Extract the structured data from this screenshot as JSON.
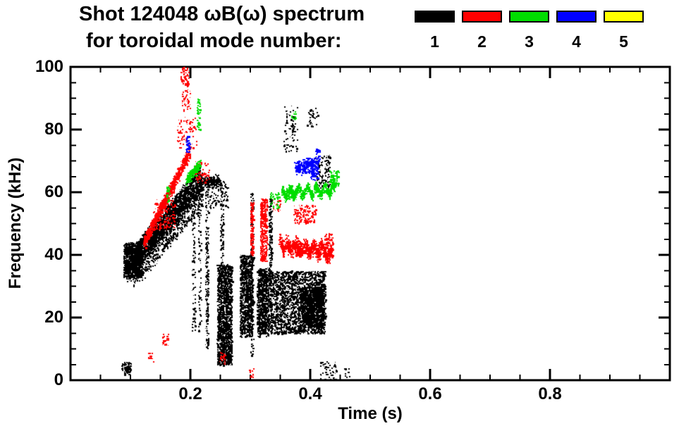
{
  "title": "Shot 124048 ωB(ω) spectrum",
  "subtitle": "for toroidal mode number:",
  "legend": {
    "modes": [
      {
        "label": "1",
        "color": "#000000"
      },
      {
        "label": "2",
        "color": "#ff0000"
      },
      {
        "label": "3",
        "color": "#00dd00"
      },
      {
        "label": "4",
        "color": "#0000ff"
      },
      {
        "label": "5",
        "color": "#ffff00"
      }
    ]
  },
  "axes": {
    "x": {
      "minor_step": 0.05
    },
    "y": {
      "minor_step": 5
    }
  },
  "chart_data": {
    "type": "scatter",
    "title": "Shot 124048 ωB(ω) spectrum",
    "subtitle": "for toroidal mode number: 1-5",
    "xlabel": "Time (s)",
    "ylabel": "Frequency (kHz)",
    "xlim": [
      0.0,
      1.0
    ],
    "ylim": [
      0,
      100
    ],
    "x_major_ticks": [
      0.2,
      0.4,
      0.6,
      0.8
    ],
    "y_major_ticks": [
      0,
      20,
      40,
      60,
      80,
      100
    ],
    "grid": false,
    "legend_position": "top-right",
    "series": [
      {
        "name": "toroidal mode n=1",
        "color": "#000000",
        "features": [
          {
            "kind": "chirp",
            "t": [
              0.093,
              0.218
            ],
            "f": [
              35,
              63
            ],
            "w": 7,
            "n": 2200
          },
          {
            "kind": "chirp",
            "t": [
              0.1,
              0.215
            ],
            "f": [
              40,
              67
            ],
            "w": 3,
            "n": 650
          },
          {
            "kind": "chirp",
            "t": [
              0.105,
              0.22
            ],
            "f": [
              31,
              57
            ],
            "w": 3,
            "n": 320
          },
          {
            "kind": "blob",
            "t": [
              0.088,
              0.118
            ],
            "f": [
              33,
              44
            ],
            "n": 650
          },
          {
            "kind": "blob",
            "t": [
              0.085,
              0.1
            ],
            "f": [
              2,
              6
            ],
            "n": 80
          },
          {
            "kind": "chirp",
            "t": [
              0.215,
              0.248
            ],
            "f": [
              63,
              64
            ],
            "w": 3,
            "n": 240
          },
          {
            "kind": "vline",
            "t": 0.205,
            "f": [
              15,
              58
            ],
            "n": 80
          },
          {
            "kind": "vline",
            "t": 0.215,
            "f": [
              15,
              60
            ],
            "n": 70
          },
          {
            "kind": "vline",
            "t": 0.227,
            "f": [
              10,
              62
            ],
            "n": 200
          },
          {
            "kind": "blob",
            "t": [
              0.244,
              0.269
            ],
            "f": [
              5,
              37
            ],
            "n": 1600
          },
          {
            "kind": "vline",
            "t": 0.252,
            "f": [
              37,
              63
            ],
            "n": 90
          },
          {
            "kind": "blob",
            "t": [
              0.252,
              0.262
            ],
            "f": [
              55,
              64
            ],
            "n": 40
          },
          {
            "kind": "blob",
            "t": [
              0.282,
              0.303
            ],
            "f": [
              14,
              40
            ],
            "n": 900
          },
          {
            "kind": "vline",
            "t": 0.302,
            "f": [
              8,
              60
            ],
            "n": 180
          },
          {
            "kind": "blob",
            "t": [
              0.31,
              0.425
            ],
            "f": [
              15,
              35
            ],
            "n": 2600
          },
          {
            "kind": "blob",
            "t": [
              0.312,
              0.33
            ],
            "f": [
              14,
              36
            ],
            "n": 400
          },
          {
            "kind": "blob",
            "t": [
              0.385,
              0.422
            ],
            "f": [
              17,
              30
            ],
            "n": 900
          },
          {
            "kind": "vline",
            "t": 0.333,
            "f": [
              33,
              58
            ],
            "n": 150
          },
          {
            "kind": "blob",
            "t": [
              0.355,
              0.378
            ],
            "f": [
              73,
              88
            ],
            "n": 80
          },
          {
            "kind": "blob",
            "t": [
              0.393,
              0.412
            ],
            "f": [
              81,
              87
            ],
            "n": 35
          },
          {
            "kind": "blob",
            "t": [
              0.408,
              0.432
            ],
            "f": [
              61,
              72
            ],
            "n": 130
          },
          {
            "kind": "blob",
            "t": [
              0.415,
              0.445
            ],
            "f": [
              0,
              6
            ],
            "n": 60
          },
          {
            "kind": "blob",
            "t": [
              0.455,
              0.465
            ],
            "f": [
              1,
              4
            ],
            "n": 12
          },
          {
            "kind": "blob",
            "t": [
              0.232,
              0.246
            ],
            "f": [
              55,
              65
            ],
            "n": 50
          }
        ]
      },
      {
        "name": "toroidal mode n=2",
        "color": "#ff0000",
        "features": [
          {
            "kind": "chirp",
            "t": [
              0.122,
              0.198
            ],
            "f": [
              44,
              73
            ],
            "w": 3.5,
            "n": 850
          },
          {
            "kind": "blob",
            "t": [
              0.138,
              0.175
            ],
            "f": [
              48,
              58
            ],
            "n": 150
          },
          {
            "kind": "blob",
            "t": [
              0.178,
              0.21
            ],
            "f": [
              74,
              84
            ],
            "n": 85
          },
          {
            "kind": "blob",
            "t": [
              0.182,
              0.197
            ],
            "f": [
              94,
              100
            ],
            "n": 65
          },
          {
            "kind": "blob",
            "t": [
              0.185,
              0.2
            ],
            "f": [
              86,
              93
            ],
            "n": 40
          },
          {
            "kind": "blob",
            "t": [
              0.205,
              0.232
            ],
            "f": [
              63,
              70
            ],
            "n": 65
          },
          {
            "kind": "vline",
            "t": 0.302,
            "f": [
              40,
              57
            ],
            "n": 150
          },
          {
            "kind": "blob",
            "t": [
              0.316,
              0.328
            ],
            "f": [
              38,
              58
            ],
            "n": 380
          },
          {
            "kind": "band",
            "t": [
              0.348,
              0.436
            ],
            "f": [
              44,
              40
            ],
            "w": 3.5,
            "n": 750
          },
          {
            "kind": "band",
            "t": [
              0.36,
              0.43
            ],
            "f": [
              42,
              43
            ],
            "w": 2,
            "n": 220
          },
          {
            "kind": "blob",
            "t": [
              0.372,
              0.408
            ],
            "f": [
              50,
              56
            ],
            "n": 130
          },
          {
            "kind": "blob",
            "t": [
              0.152,
              0.163
            ],
            "f": [
              11,
              15
            ],
            "n": 30
          },
          {
            "kind": "blob",
            "t": [
              0.128,
              0.138
            ],
            "f": [
              6,
              9
            ],
            "n": 16
          },
          {
            "kind": "blob",
            "t": [
              0.247,
              0.258
            ],
            "f": [
              5,
              9
            ],
            "n": 22
          },
          {
            "kind": "blob",
            "t": [
              0.297,
              0.306
            ],
            "f": [
              1,
              4
            ],
            "n": 15
          },
          {
            "kind": "blob",
            "t": [
              0.422,
              0.438
            ],
            "f": [
              41,
              47
            ],
            "n": 70
          },
          {
            "kind": "blob",
            "t": [
              0.337,
              0.35
            ],
            "f": [
              54,
              58
            ],
            "n": 28
          }
        ]
      },
      {
        "name": "toroidal mode n=3",
        "color": "#00dd00",
        "features": [
          {
            "kind": "chirp",
            "t": [
              0.193,
              0.215
            ],
            "f": [
              64,
              69
            ],
            "w": 2.5,
            "n": 240
          },
          {
            "kind": "vline",
            "t": 0.213,
            "f": [
              80,
              90
            ],
            "n": 55
          },
          {
            "kind": "band",
            "t": [
              0.352,
              0.44
            ],
            "f": [
              60,
              61
            ],
            "w": 2.5,
            "n": 750
          },
          {
            "kind": "blob",
            "t": [
              0.36,
              0.375
            ],
            "f": [
              58,
              61
            ],
            "n": 100
          },
          {
            "kind": "blob",
            "t": [
              0.432,
              0.447
            ],
            "f": [
              62,
              67
            ],
            "n": 80
          },
          {
            "kind": "blob",
            "t": [
              0.368,
              0.377
            ],
            "f": [
              83,
              86
            ],
            "n": 16
          },
          {
            "kind": "blob",
            "t": [
              0.332,
              0.347
            ],
            "f": [
              55,
              60
            ],
            "n": 45
          },
          {
            "kind": "vline",
            "t": 0.162,
            "f": [
              57,
              62
            ],
            "n": 35
          }
        ]
      },
      {
        "name": "toroidal mode n=4",
        "color": "#0000ff",
        "features": [
          {
            "kind": "band",
            "t": [
              0.374,
              0.405
            ],
            "f": [
              68,
              69
            ],
            "w": 2.2,
            "n": 280
          },
          {
            "kind": "blob",
            "t": [
              0.4,
              0.413
            ],
            "f": [
              64,
              71
            ],
            "n": 120
          },
          {
            "kind": "blob",
            "t": [
              0.192,
              0.199
            ],
            "f": [
              73,
              78
            ],
            "n": 50
          },
          {
            "kind": "blob",
            "t": [
              0.408,
              0.416
            ],
            "f": [
              70,
              74
            ],
            "n": 25
          }
        ]
      },
      {
        "name": "toroidal mode n=5",
        "color": "#ffff00",
        "features": []
      }
    ]
  }
}
